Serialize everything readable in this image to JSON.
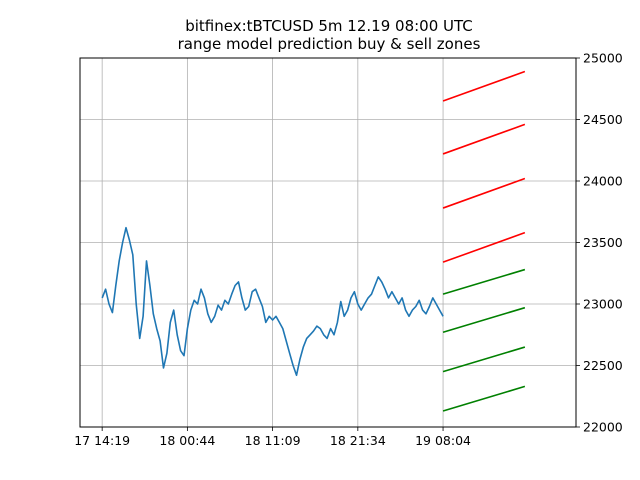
{
  "chart_data": {
    "type": "line",
    "title_line1": "bitfinex:tBTCUSD 5m 12.19 08:00 UTC",
    "title_line2": "range model prediction buy & sell zones",
    "xlabel": "",
    "ylabel": "",
    "y_axis_side": "right",
    "grid": true,
    "ylim": [
      22000,
      25000
    ],
    "xlim": [
      -1.3,
      27.8
    ],
    "x_ticks": [
      {
        "x": 0,
        "label": "17 14:19"
      },
      {
        "x": 5,
        "label": "18 00:44"
      },
      {
        "x": 10,
        "label": "18 11:09"
      },
      {
        "x": 15,
        "label": "18 21:34"
      },
      {
        "x": 20,
        "label": "19 08:04"
      }
    ],
    "y_ticks": [
      {
        "y": 22000,
        "label": "22000"
      },
      {
        "y": 22500,
        "label": "22500"
      },
      {
        "y": 23000,
        "label": "23000"
      },
      {
        "y": 23500,
        "label": "23500"
      },
      {
        "y": 24000,
        "label": "24000"
      },
      {
        "y": 24500,
        "label": "24500"
      },
      {
        "y": 25000,
        "label": "25000"
      }
    ],
    "colors": {
      "price": "#1f77b4",
      "sell": "#ff0000",
      "buy": "#008000"
    },
    "price_series": {
      "x": [
        0,
        0.2,
        0.4,
        0.6,
        0.8,
        1.0,
        1.2,
        1.4,
        1.6,
        1.8,
        2.0,
        2.2,
        2.4,
        2.6,
        2.8,
        3.0,
        3.2,
        3.4,
        3.6,
        3.8,
        4.0,
        4.2,
        4.4,
        4.6,
        4.8,
        5.0,
        5.2,
        5.4,
        5.6,
        5.8,
        6.0,
        6.2,
        6.4,
        6.6,
        6.8,
        7.0,
        7.2,
        7.4,
        7.6,
        7.8,
        8.0,
        8.2,
        8.4,
        8.6,
        8.8,
        9.0,
        9.2,
        9.4,
        9.6,
        9.8,
        10.0,
        10.2,
        10.4,
        10.6,
        10.8,
        11.0,
        11.2,
        11.4,
        11.6,
        11.8,
        12.0,
        12.2,
        12.4,
        12.6,
        12.8,
        13.0,
        13.2,
        13.4,
        13.6,
        13.8,
        14.0,
        14.2,
        14.4,
        14.6,
        14.8,
        15.0,
        15.2,
        15.4,
        15.6,
        15.8,
        16.0,
        16.2,
        16.4,
        16.6,
        16.8,
        17.0,
        17.2,
        17.4,
        17.6,
        17.8,
        18.0,
        18.2,
        18.4,
        18.6,
        18.8,
        19.0,
        19.2,
        19.4,
        19.6,
        19.8,
        20.0
      ],
      "y": [
        23050,
        23120,
        23000,
        22930,
        23150,
        23350,
        23500,
        23620,
        23520,
        23400,
        23000,
        22720,
        22900,
        23350,
        23150,
        22920,
        22800,
        22700,
        22480,
        22600,
        22850,
        22950,
        22750,
        22620,
        22580,
        22800,
        22950,
        23030,
        23000,
        23120,
        23050,
        22920,
        22850,
        22900,
        22990,
        22950,
        23030,
        23000,
        23080,
        23150,
        23180,
        23050,
        22950,
        22980,
        23100,
        23120,
        23050,
        22980,
        22850,
        22900,
        22870,
        22900,
        22850,
        22800,
        22700,
        22600,
        22500,
        22420,
        22550,
        22650,
        22720,
        22750,
        22780,
        22820,
        22800,
        22750,
        22720,
        22800,
        22750,
        22850,
        23020,
        22900,
        22950,
        23050,
        23100,
        23000,
        22950,
        23000,
        23050,
        23080,
        23150,
        23220,
        23180,
        23120,
        23050,
        23100,
        23050,
        23000,
        23050,
        22950,
        22900,
        22950,
        22980,
        23030,
        22950,
        22920,
        22980,
        23050,
        23000,
        22950,
        22900
      ]
    },
    "zones": [
      {
        "kind": "sell",
        "x": [
          20,
          24.8
        ],
        "y": [
          24650,
          24890
        ]
      },
      {
        "kind": "sell",
        "x": [
          20,
          24.8
        ],
        "y": [
          24220,
          24460
        ]
      },
      {
        "kind": "sell",
        "x": [
          20,
          24.8
        ],
        "y": [
          23780,
          24020
        ]
      },
      {
        "kind": "sell",
        "x": [
          20,
          24.8
        ],
        "y": [
          23340,
          23580
        ]
      },
      {
        "kind": "buy",
        "x": [
          20,
          24.8
        ],
        "y": [
          23080,
          23280
        ]
      },
      {
        "kind": "buy",
        "x": [
          20,
          24.8
        ],
        "y": [
          22770,
          22970
        ]
      },
      {
        "kind": "buy",
        "x": [
          20,
          24.8
        ],
        "y": [
          22450,
          22650
        ]
      },
      {
        "kind": "buy",
        "x": [
          20,
          24.8
        ],
        "y": [
          22130,
          22330
        ]
      }
    ]
  }
}
